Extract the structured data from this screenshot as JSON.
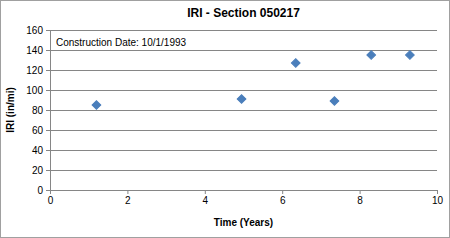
{
  "chart_data": {
    "type": "scatter",
    "title": "IRI - Section 050217",
    "annotation": "Construction Date: 10/1/1993",
    "x_label": "Time (Years)",
    "y_label": "IRI (in/mi)",
    "x": [
      1.2,
      4.95,
      6.35,
      7.35,
      8.3,
      9.3
    ],
    "values": [
      85,
      91,
      127,
      89,
      135,
      135
    ],
    "color": "#4a7ebb",
    "marker": "diamond",
    "xlim": [
      0,
      10
    ],
    "xticks": [
      0,
      2,
      4,
      6,
      8,
      10
    ],
    "ylim": [
      0,
      160
    ],
    "yticks": [
      0,
      20,
      40,
      60,
      80,
      100,
      120,
      140,
      160
    ],
    "grid": true
  }
}
